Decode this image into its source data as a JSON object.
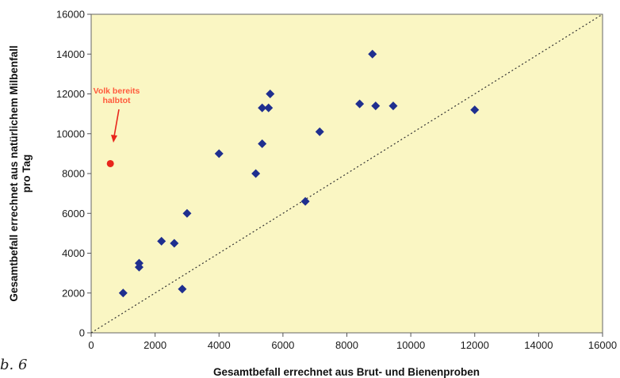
{
  "figure_label": "b. 6",
  "chart_data": {
    "type": "scatter",
    "title": "",
    "xlabel": "Gesamtbefall errechnet aus Brut- und Bienenproben",
    "ylabel_lines": [
      "Gesamtbefall errechnet aus natürlichem Milbenfall",
      "pro Tag"
    ],
    "xlim": [
      0,
      16000
    ],
    "ylim": [
      0,
      16000
    ],
    "xticks": [
      0,
      2000,
      4000,
      6000,
      8000,
      10000,
      12000,
      14000,
      16000
    ],
    "yticks": [
      0,
      2000,
      4000,
      6000,
      8000,
      10000,
      12000,
      14000,
      16000
    ],
    "grid": false,
    "legend": "none",
    "plot_background": "#faf6c3",
    "marker_color": "#1f2f8f",
    "reference_line": {
      "style": "dotted",
      "from": [
        0,
        0
      ],
      "to": [
        16000,
        16000
      ]
    },
    "series": [
      {
        "points": [
          [
            1000,
            2000
          ],
          [
            1500,
            3500
          ],
          [
            1500,
            3300
          ],
          [
            2200,
            4600
          ],
          [
            2600,
            4500
          ],
          [
            2850,
            2200
          ],
          [
            3000,
            6000
          ],
          [
            4000,
            9000
          ],
          [
            5150,
            8000
          ],
          [
            5350,
            11300
          ],
          [
            5350,
            9500
          ],
          [
            5550,
            11300
          ],
          [
            5600,
            12000
          ],
          [
            6700,
            6600
          ],
          [
            7150,
            10100
          ],
          [
            8400,
            11500
          ],
          [
            8800,
            14000
          ],
          [
            8900,
            11400
          ],
          [
            9450,
            11400
          ],
          [
            12000,
            11200
          ]
        ]
      }
    ],
    "highlight": {
      "point": [
        600,
        8500
      ],
      "color": "#e8261c",
      "label_lines": [
        "Volk bereits",
        "halbtot"
      ],
      "label_color": "#ff5a3c"
    }
  }
}
